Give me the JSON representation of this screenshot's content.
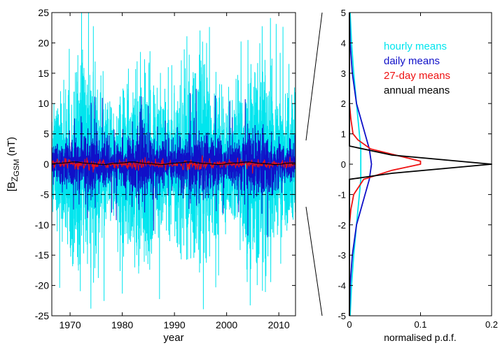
{
  "chart_data": [
    {
      "type": "line",
      "xlabel": "year",
      "ylabel_main": "[B",
      "ylabel_sub": "Z",
      "ylabel_subsub": "GSM",
      "ylabel_unit": " (nT)",
      "xlim": [
        1966.5,
        2013.2
      ],
      "ylim": [
        -25,
        25
      ],
      "xticks": [
        "1970",
        "1980",
        "1990",
        "2000",
        "2010"
      ],
      "yticks": [
        "-25",
        "-20",
        "-15",
        "-10",
        "-5",
        "0",
        "5",
        "10",
        "15",
        "20",
        "25"
      ],
      "reference_lines": [
        5,
        -5
      ],
      "series": [
        {
          "name": "hourly means",
          "color": "#00e5ee",
          "typical_range": [
            -12,
            12
          ],
          "extremes": [
            -25,
            25
          ]
        },
        {
          "name": "daily means",
          "color": "#1010c8",
          "typical_range": [
            -4,
            4
          ],
          "extremes": [
            -21,
            18
          ]
        },
        {
          "name": "27-day means",
          "color": "#ee1111",
          "typical_range": [
            -0.8,
            1.2
          ]
        },
        {
          "name": "annual means",
          "color": "#000000",
          "typical_range": [
            -0.2,
            0.4
          ]
        }
      ]
    },
    {
      "type": "line",
      "xlabel": "normalised p.d.f.",
      "xlim": [
        0,
        0.2
      ],
      "ylim": [
        -5,
        5
      ],
      "xticks": [
        "0",
        "0.1",
        "0.2"
      ],
      "yticks": [
        "-5",
        "-4",
        "-3",
        "-2",
        "-1",
        "0",
        "1",
        "2",
        "3",
        "4",
        "5"
      ],
      "legend_position": "top-right",
      "series": [
        {
          "name": "hourly means",
          "color": "#00e5ee",
          "y": [
            -5,
            -4,
            -3,
            -2,
            -1,
            -0.5,
            0,
            0.5,
            1,
            2,
            3,
            4,
            5
          ],
          "x": [
            0.001,
            0.003,
            0.006,
            0.01,
            0.014,
            0.016,
            0.016,
            0.016,
            0.014,
            0.01,
            0.006,
            0.003,
            0.001
          ]
        },
        {
          "name": "daily means",
          "color": "#1010c8",
          "y": [
            -5,
            -4,
            -3,
            -2,
            -1.5,
            -1,
            -0.5,
            0,
            0.5,
            1,
            1.5,
            2,
            3,
            4,
            5
          ],
          "x": [
            0,
            0.001,
            0.004,
            0.01,
            0.016,
            0.022,
            0.028,
            0.031,
            0.028,
            0.022,
            0.016,
            0.01,
            0.004,
            0.001,
            0
          ]
        },
        {
          "name": "27-day means",
          "color": "#ee1111",
          "y": [
            -2,
            -1.5,
            -1,
            -0.5,
            -0.2,
            0,
            0.1,
            0.3,
            0.5,
            0.8,
            1,
            1.5,
            2
          ],
          "x": [
            0,
            0.002,
            0.006,
            0.02,
            0.06,
            0.1,
            0.1,
            0.065,
            0.03,
            0.012,
            0.005,
            0.002,
            0
          ]
        },
        {
          "name": "annual means",
          "color": "#000000",
          "y": [
            -5,
            -0.5,
            -0.3,
            -0.15,
            0,
            0.15,
            0.3,
            0.6,
            5
          ],
          "x": [
            0,
            0,
            0.06,
            0.13,
            0.2,
            0.13,
            0.06,
            0,
            0
          ]
        }
      ]
    }
  ]
}
